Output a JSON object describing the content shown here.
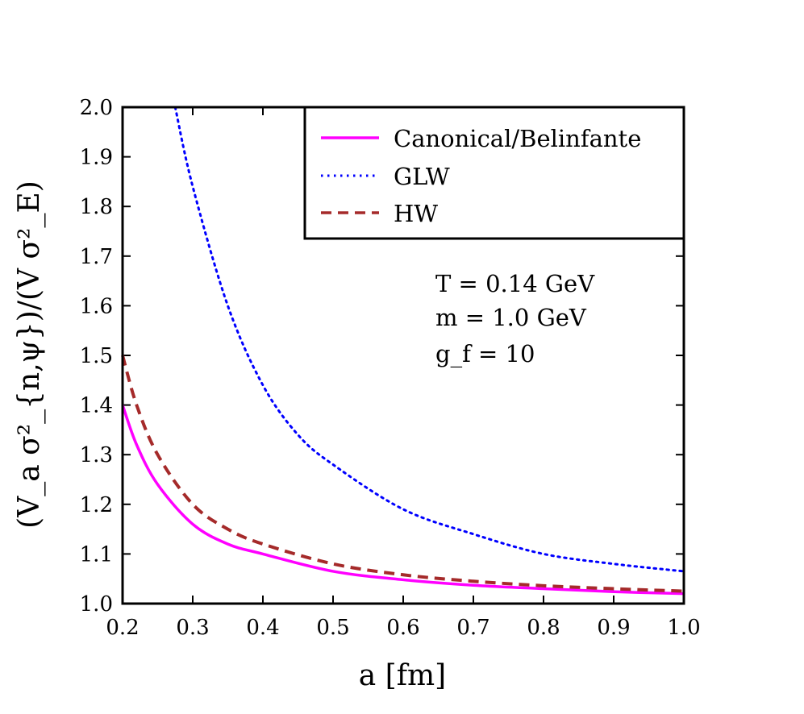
{
  "chart_data": {
    "type": "line",
    "xlabel": "a [fm]",
    "ylabel": "(V_a σ²_{n,ψ})/(V σ²_E)",
    "xlim": [
      0.2,
      1.0
    ],
    "ylim": [
      1.0,
      2.0
    ],
    "x_ticks": [
      "0.2",
      "0.3",
      "0.4",
      "0.5",
      "0.6",
      "0.7",
      "0.8",
      "0.9",
      "1.0"
    ],
    "y_ticks": [
      "1.0",
      "1.1",
      "1.2",
      "1.3",
      "1.4",
      "1.5",
      "1.6",
      "1.7",
      "1.8",
      "1.9",
      "2.0"
    ],
    "legend_position": "top-right",
    "grid": false,
    "annotations": [
      "T = 0.14 GeV",
      "m = 1.0 GeV",
      "g_f = 10"
    ],
    "series": [
      {
        "name": "Canonical/Belinfante",
        "color": "#ff00ff",
        "style": "solid",
        "x": [
          0.2,
          0.22,
          0.25,
          0.3,
          0.35,
          0.4,
          0.5,
          0.6,
          0.7,
          0.8,
          0.9,
          1.0
        ],
        "y": [
          1.4,
          1.32,
          1.24,
          1.16,
          1.12,
          1.1,
          1.065,
          1.048,
          1.037,
          1.03,
          1.024,
          1.02
        ]
      },
      {
        "name": "GLW",
        "color": "#0000ff",
        "style": "dotted",
        "x": [
          0.275,
          0.3,
          0.35,
          0.4,
          0.45,
          0.5,
          0.6,
          0.7,
          0.8,
          0.9,
          1.0
        ],
        "y": [
          2.0,
          1.84,
          1.6,
          1.44,
          1.34,
          1.28,
          1.19,
          1.14,
          1.1,
          1.08,
          1.065
        ]
      },
      {
        "name": "HW",
        "color": "#a52a2a",
        "style": "dashed",
        "x": [
          0.2,
          0.22,
          0.25,
          0.3,
          0.35,
          0.4,
          0.5,
          0.6,
          0.7,
          0.8,
          0.9,
          1.0
        ],
        "y": [
          1.5,
          1.4,
          1.3,
          1.2,
          1.15,
          1.12,
          1.08,
          1.058,
          1.045,
          1.036,
          1.03,
          1.025
        ]
      }
    ]
  }
}
